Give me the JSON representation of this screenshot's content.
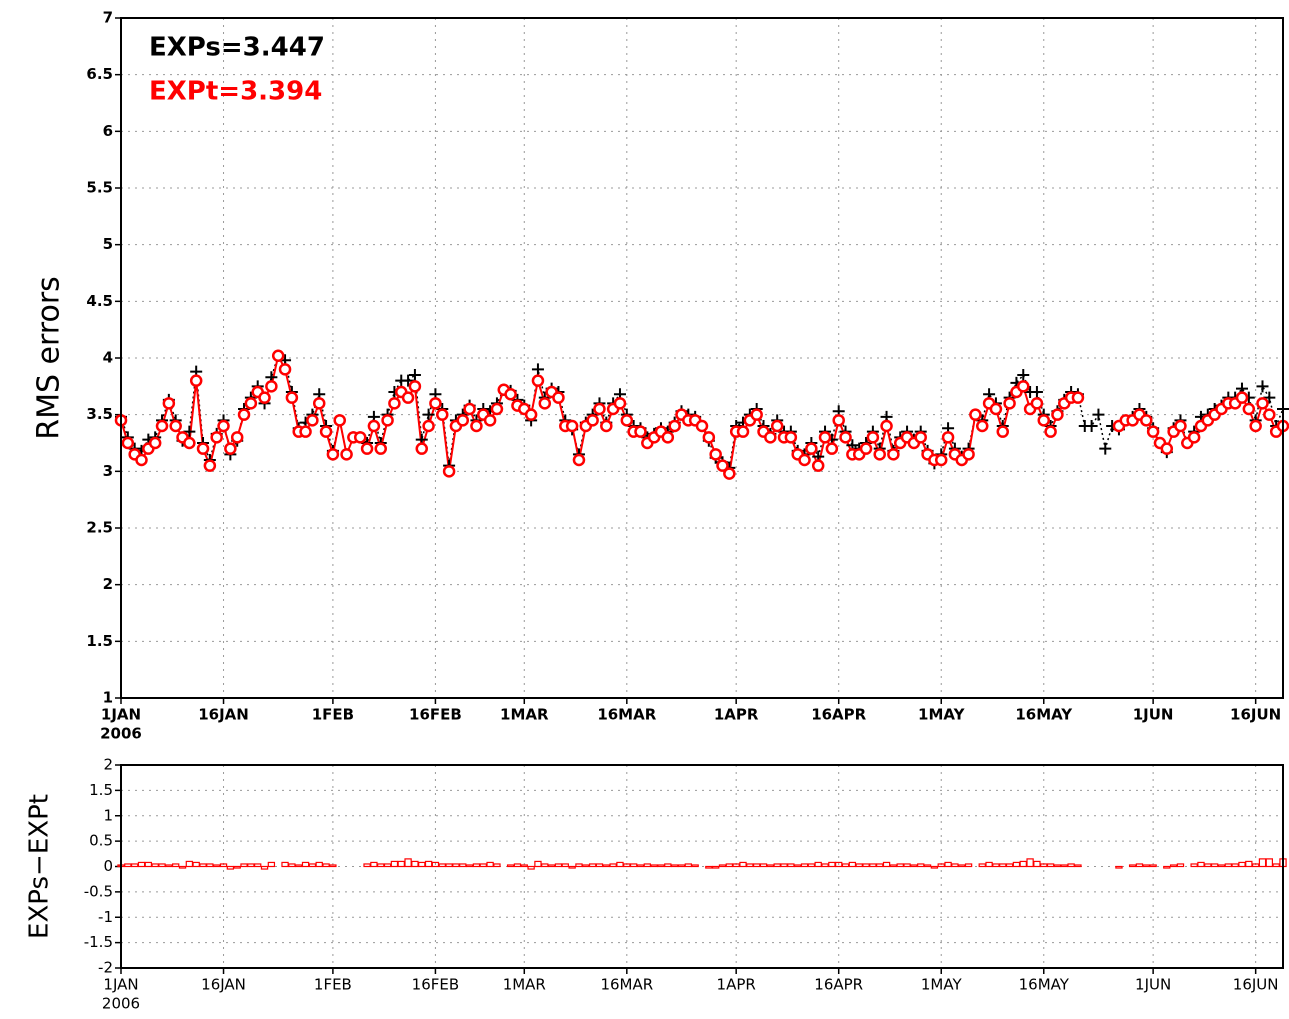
{
  "chart_data": [
    {
      "type": "line",
      "ylabel": "RMS errors",
      "year": "2006",
      "xlim": [
        0,
        170
      ],
      "ylim": [
        1,
        7
      ],
      "grid": true,
      "legend": "top-left",
      "xticks": [
        {
          "value": 0,
          "label": "1JAN"
        },
        {
          "value": 15,
          "label": "16JAN"
        },
        {
          "value": 31,
          "label": "1FEB"
        },
        {
          "value": 46,
          "label": "16FEB"
        },
        {
          "value": 59,
          "label": "1MAR"
        },
        {
          "value": 74,
          "label": "16MAR"
        },
        {
          "value": 90,
          "label": "1APR"
        },
        {
          "value": 105,
          "label": "16APR"
        },
        {
          "value": 120,
          "label": "1MAY"
        },
        {
          "value": 135,
          "label": "16MAY"
        },
        {
          "value": 151,
          "label": "1JUN"
        },
        {
          "value": 166,
          "label": "16JUN"
        }
      ],
      "yticks": [
        1,
        1.5,
        2,
        2.5,
        3,
        3.5,
        4,
        4.5,
        5,
        5.5,
        6,
        6.5,
        7
      ],
      "x": [
        0,
        1,
        2,
        3,
        4,
        5,
        6,
        7,
        8,
        9,
        10,
        11,
        12,
        13,
        14,
        15,
        16,
        17,
        18,
        19,
        20,
        21,
        22,
        23,
        24,
        25,
        26,
        27,
        28,
        29,
        30,
        31,
        32,
        33,
        34,
        35,
        36,
        37,
        38,
        39,
        40,
        41,
        42,
        43,
        44,
        45,
        46,
        47,
        48,
        49,
        50,
        51,
        52,
        53,
        54,
        55,
        56,
        57,
        58,
        59,
        60,
        61,
        62,
        63,
        64,
        65,
        66,
        67,
        68,
        69,
        70,
        71,
        72,
        73,
        74,
        75,
        76,
        77,
        78,
        79,
        80,
        81,
        82,
        83,
        84,
        85,
        86,
        87,
        88,
        89,
        90,
        91,
        92,
        93,
        94,
        95,
        96,
        97,
        98,
        99,
        100,
        101,
        102,
        103,
        104,
        105,
        106,
        107,
        108,
        109,
        110,
        111,
        112,
        113,
        114,
        115,
        116,
        117,
        118,
        119,
        120,
        121,
        122,
        123,
        124,
        125,
        126,
        127,
        128,
        129,
        130,
        131,
        132,
        133,
        134,
        135,
        136,
        137,
        138,
        139,
        140,
        141,
        142,
        143,
        144,
        145,
        146,
        147,
        148,
        149,
        150,
        151,
        152,
        153,
        154,
        155,
        156,
        157,
        158,
        159,
        160,
        161,
        162,
        163,
        164,
        165,
        166,
        167,
        168,
        169,
        170
      ],
      "series": [
        {
          "name": "EXPs=3.447",
          "color": "#000000",
          "marker": "plus",
          "line_style": "dotted",
          "values": [
            3.48,
            3.3,
            3.2,
            3.18,
            3.28,
            3.3,
            3.45,
            3.63,
            3.45,
            3.27,
            3.35,
            3.88,
            3.25,
            3.1,
            3.33,
            3.45,
            3.15,
            3.27,
            3.55,
            3.65,
            3.75,
            3.6,
            3.83,
            4.02,
            3.98,
            3.7,
            3.38,
            3.43,
            3.5,
            3.68,
            3.4,
            3.18,
            3.45,
            3.15,
            3.3,
            3.3,
            3.25,
            3.48,
            3.25,
            3.5,
            3.7,
            3.8,
            3.8,
            3.85,
            3.28,
            3.5,
            3.68,
            3.55,
            3.05,
            3.45,
            3.5,
            3.58,
            3.45,
            3.55,
            3.53,
            3.6,
            3.72,
            3.71,
            3.63,
            3.58,
            3.45,
            3.9,
            3.65,
            3.73,
            3.7,
            3.45,
            3.37,
            3.15,
            3.43,
            3.5,
            3.6,
            3.43,
            3.6,
            3.68,
            3.5,
            3.4,
            3.38,
            3.3,
            3.33,
            3.38,
            3.35,
            3.43,
            3.53,
            3.5,
            3.48,
            3.4,
            3.27,
            3.12,
            3.08,
            3.03,
            3.4,
            3.43,
            3.5,
            3.55,
            3.4,
            3.33,
            3.45,
            3.35,
            3.35,
            3.18,
            3.15,
            3.25,
            3.13,
            3.35,
            3.28,
            3.53,
            3.35,
            3.23,
            3.2,
            3.25,
            3.35,
            3.2,
            3.48,
            3.18,
            3.3,
            3.35,
            3.28,
            3.35,
            3.18,
            3.07,
            3.15,
            3.38,
            3.2,
            3.13,
            3.2,
            3.5,
            3.45,
            3.68,
            3.6,
            3.4,
            3.65,
            3.78,
            3.85,
            3.7,
            3.7,
            3.5,
            3.4,
            3.53,
            3.63,
            3.7,
            3.68,
            3.4,
            3.4,
            3.5,
            3.2,
            3.4,
            3.37,
            3.45,
            3.48,
            3.55,
            3.48,
            3.38,
            3.25,
            3.17,
            3.38,
            3.45,
            3.25,
            3.35,
            3.48,
            3.5,
            3.55,
            3.58,
            3.65,
            3.65,
            3.73,
            3.65,
            3.45,
            3.75,
            3.65,
            3.4,
            3.55
          ]
        },
        {
          "name": "EXPt=3.394",
          "color": "#ff0000",
          "marker": "circle",
          "line_style": "solid",
          "values": [
            3.45,
            3.25,
            3.15,
            3.1,
            3.2,
            3.25,
            3.4,
            3.6,
            3.4,
            3.3,
            3.25,
            3.8,
            3.2,
            3.05,
            3.3,
            3.4,
            3.2,
            3.3,
            3.5,
            3.6,
            3.7,
            3.65,
            3.75,
            4.02,
            3.9,
            3.65,
            3.35,
            3.35,
            3.45,
            3.6,
            3.35,
            3.15,
            3.45,
            3.15,
            3.3,
            3.3,
            3.2,
            3.4,
            3.2,
            3.45,
            3.6,
            3.7,
            3.65,
            3.75,
            3.2,
            3.4,
            3.6,
            3.5,
            3.0,
            3.4,
            3.45,
            3.55,
            3.4,
            3.5,
            3.45,
            3.55,
            3.72,
            3.68,
            3.58,
            3.55,
            3.5,
            3.8,
            3.6,
            3.7,
            3.65,
            3.4,
            3.4,
            3.1,
            3.4,
            3.45,
            3.55,
            3.4,
            3.55,
            3.6,
            3.45,
            3.35,
            3.35,
            3.25,
            3.3,
            3.35,
            3.3,
            3.4,
            3.5,
            3.45,
            3.45,
            3.4,
            3.3,
            3.15,
            3.05,
            2.98,
            3.35,
            3.35,
            3.45,
            3.5,
            3.35,
            3.3,
            3.4,
            3.3,
            3.3,
            3.15,
            3.1,
            3.2,
            3.05,
            3.3,
            3.2,
            3.45,
            3.3,
            3.15,
            3.15,
            3.2,
            3.3,
            3.15,
            3.4,
            3.15,
            3.25,
            3.3,
            3.25,
            3.3,
            3.15,
            3.1,
            3.1,
            3.3,
            3.15,
            3.1,
            3.15,
            3.5,
            3.4,
            3.6,
            3.55,
            3.35,
            3.6,
            3.7,
            3.75,
            3.55,
            3.6,
            3.45,
            3.35,
            3.5,
            3.6,
            3.65,
            3.65,
            null,
            null,
            null,
            null,
            null,
            3.4,
            3.45,
            3.45,
            3.5,
            3.45,
            3.35,
            3.25,
            3.2,
            3.35,
            3.4,
            3.25,
            3.3,
            3.4,
            3.45,
            3.5,
            3.55,
            3.6,
            3.6,
            3.65,
            3.55,
            3.4,
            3.6,
            3.5,
            3.35,
            3.4
          ]
        }
      ]
    },
    {
      "type": "bar",
      "ylabel": "EXPs−EXPt",
      "year": "2006",
      "color": "#ff0000",
      "xlim": [
        0,
        170
      ],
      "ylim": [
        -2,
        2
      ],
      "grid": true,
      "xticks": [
        {
          "value": 0,
          "label": "1JAN"
        },
        {
          "value": 15,
          "label": "16JAN"
        },
        {
          "value": 31,
          "label": "1FEB"
        },
        {
          "value": 46,
          "label": "16FEB"
        },
        {
          "value": 59,
          "label": "1MAR"
        },
        {
          "value": 74,
          "label": "16MAR"
        },
        {
          "value": 90,
          "label": "1APR"
        },
        {
          "value": 105,
          "label": "16APR"
        },
        {
          "value": 120,
          "label": "1MAY"
        },
        {
          "value": 135,
          "label": "16MAY"
        },
        {
          "value": 151,
          "label": "1JUN"
        },
        {
          "value": 166,
          "label": "16JUN"
        }
      ],
      "yticks": [
        -2,
        -1.5,
        -1,
        -0.5,
        0,
        0.5,
        1,
        1.5,
        2
      ],
      "x": [
        0,
        1,
        2,
        3,
        4,
        5,
        6,
        7,
        8,
        9,
        10,
        11,
        12,
        13,
        14,
        15,
        16,
        17,
        18,
        19,
        20,
        21,
        22,
        23,
        24,
        25,
        26,
        27,
        28,
        29,
        30,
        31,
        32,
        33,
        34,
        35,
        36,
        37,
        38,
        39,
        40,
        41,
        42,
        43,
        44,
        45,
        46,
        47,
        48,
        49,
        50,
        51,
        52,
        53,
        54,
        55,
        56,
        57,
        58,
        59,
        60,
        61,
        62,
        63,
        64,
        65,
        66,
        67,
        68,
        69,
        70,
        71,
        72,
        73,
        74,
        75,
        76,
        77,
        78,
        79,
        80,
        81,
        82,
        83,
        84,
        85,
        86,
        87,
        88,
        89,
        90,
        91,
        92,
        93,
        94,
        95,
        96,
        97,
        98,
        99,
        100,
        101,
        102,
        103,
        104,
        105,
        106,
        107,
        108,
        109,
        110,
        111,
        112,
        113,
        114,
        115,
        116,
        117,
        118,
        119,
        120,
        121,
        122,
        123,
        124,
        125,
        126,
        127,
        128,
        129,
        130,
        131,
        132,
        133,
        134,
        135,
        136,
        137,
        138,
        139,
        140,
        141,
        142,
        143,
        144,
        145,
        146,
        147,
        148,
        149,
        150,
        151,
        152,
        153,
        154,
        155,
        156,
        157,
        158,
        159,
        160,
        161,
        162,
        163,
        164,
        165,
        166,
        167,
        168,
        169,
        170
      ],
      "values": [
        0.03,
        0.05,
        0.05,
        0.08,
        0.08,
        0.05,
        0.05,
        0.03,
        0.05,
        -0.03,
        0.1,
        0.08,
        0.05,
        0.05,
        0.03,
        0.05,
        -0.05,
        -0.03,
        0.05,
        0.05,
        0.05,
        -0.05,
        0.08,
        0.0,
        0.08,
        0.05,
        0.03,
        0.08,
        0.05,
        0.08,
        0.05,
        0.03,
        0.0,
        0.0,
        0.0,
        0.0,
        0.05,
        0.08,
        0.05,
        0.05,
        0.1,
        0.1,
        0.15,
        0.1,
        0.08,
        0.1,
        0.08,
        0.05,
        0.05,
        0.05,
        0.05,
        0.03,
        0.05,
        0.05,
        0.08,
        0.05,
        0.0,
        0.03,
        0.05,
        0.03,
        -0.05,
        0.1,
        0.05,
        0.03,
        0.05,
        0.05,
        -0.03,
        0.05,
        0.03,
        0.05,
        0.05,
        0.03,
        0.05,
        0.08,
        0.05,
        0.05,
        0.03,
        0.05,
        0.03,
        0.03,
        0.05,
        0.03,
        0.03,
        0.05,
        0.03,
        0.0,
        -0.03,
        -0.03,
        0.03,
        0.05,
        0.05,
        0.08,
        0.05,
        0.05,
        0.05,
        0.03,
        0.05,
        0.05,
        0.05,
        0.03,
        0.05,
        0.05,
        0.08,
        0.05,
        0.08,
        0.08,
        0.05,
        0.08,
        0.05,
        0.05,
        0.05,
        0.05,
        0.08,
        0.03,
        0.05,
        0.05,
        0.03,
        0.05,
        0.03,
        -0.03,
        0.05,
        0.08,
        0.05,
        0.03,
        0.05,
        0.0,
        0.05,
        0.08,
        0.05,
        0.05,
        0.05,
        0.08,
        0.1,
        0.15,
        0.1,
        0.05,
        0.05,
        0.03,
        0.03,
        0.05,
        0.03,
        null,
        null,
        null,
        null,
        null,
        -0.03,
        0.0,
        0.03,
        0.05,
        0.03,
        0.03,
        0.0,
        -0.03,
        0.03,
        0.05,
        0.0,
        0.05,
        0.08,
        0.05,
        0.05,
        0.03,
        0.05,
        0.05,
        0.08,
        0.1,
        0.05,
        0.15,
        0.15,
        0.05,
        0.15
      ]
    }
  ]
}
